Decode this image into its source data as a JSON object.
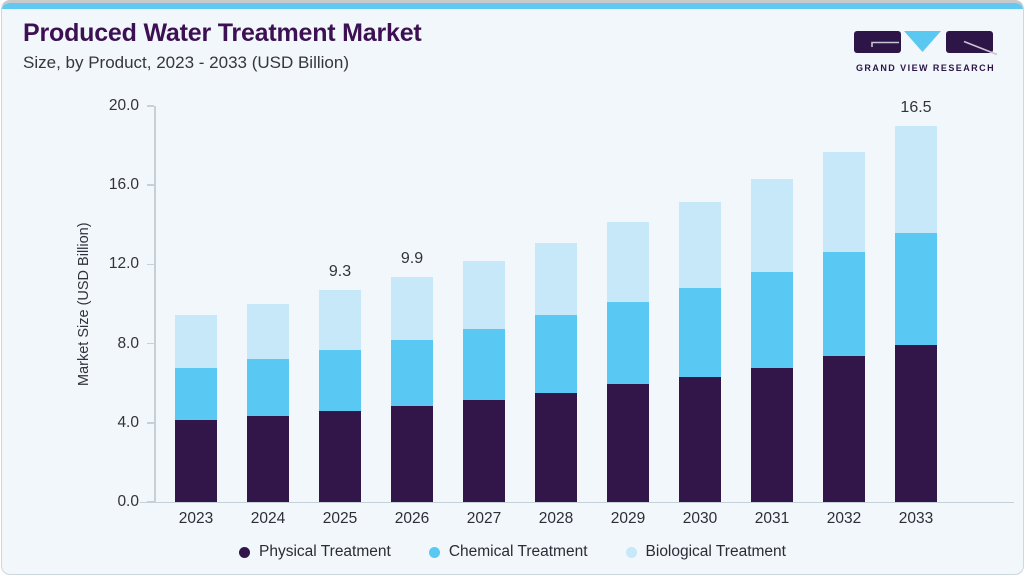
{
  "header": {
    "title": "Produced Water Treatment Market",
    "subtitle": "Size, by Product, 2023 - 2033 (USD Billion)"
  },
  "logo": {
    "wordmark": "GRAND VIEW RESEARCH"
  },
  "colors": {
    "accent_bar": "#61c9f1",
    "card_background": "#f1f7fb",
    "title_purple": "#3c1053",
    "axis_gray": "#c6d0d8",
    "logo_purple": "#2e1547",
    "logo_triangle": "#5bc8f2",
    "physical": "#331649",
    "chemical": "#59c8f3",
    "biological": "#c6e8f9"
  },
  "chart_data": {
    "type": "bar",
    "variant": "stacked",
    "title": "Produced Water Treatment Market",
    "subtitle": "Size, by Product, 2023 - 2033 (USD Billion)",
    "xlabel": "",
    "ylabel": "Market Size (USD Billion)",
    "ylim": [
      0,
      20
    ],
    "ytick_labels": [
      "20.0",
      "16.0",
      "12.0",
      "8.0",
      "4.0",
      "0.0"
    ],
    "grid": false,
    "legend_position": "bottom",
    "categories": [
      "2023",
      "2024",
      "2025",
      "2026",
      "2027",
      "2028",
      "2029",
      "2030",
      "2031",
      "2032",
      "2033"
    ],
    "series": [
      {
        "name": "Physical Treatment",
        "color": "#331649",
        "values": [
          3.6,
          3.8,
          4.0,
          4.2,
          4.5,
          4.8,
          5.2,
          5.5,
          5.9,
          6.4,
          6.9
        ]
      },
      {
        "name": "Chemical Treatment",
        "color": "#59c8f3",
        "values": [
          2.3,
          2.5,
          2.7,
          2.9,
          3.1,
          3.4,
          3.6,
          3.9,
          4.2,
          4.6,
          4.9
        ]
      },
      {
        "name": "Biological Treatment",
        "color": "#c6e8f9",
        "values": [
          2.3,
          2.4,
          2.6,
          2.8,
          3.0,
          3.2,
          3.5,
          3.8,
          4.1,
          4.4,
          4.7
        ]
      }
    ],
    "totals": [
      8.2,
      8.7,
      9.3,
      9.9,
      10.6,
      11.4,
      12.3,
      13.2,
      14.2,
      15.4,
      16.5
    ],
    "bar_value_labels": {
      "2025": "9.3",
      "2026": "9.9",
      "2033": "16.5"
    }
  }
}
